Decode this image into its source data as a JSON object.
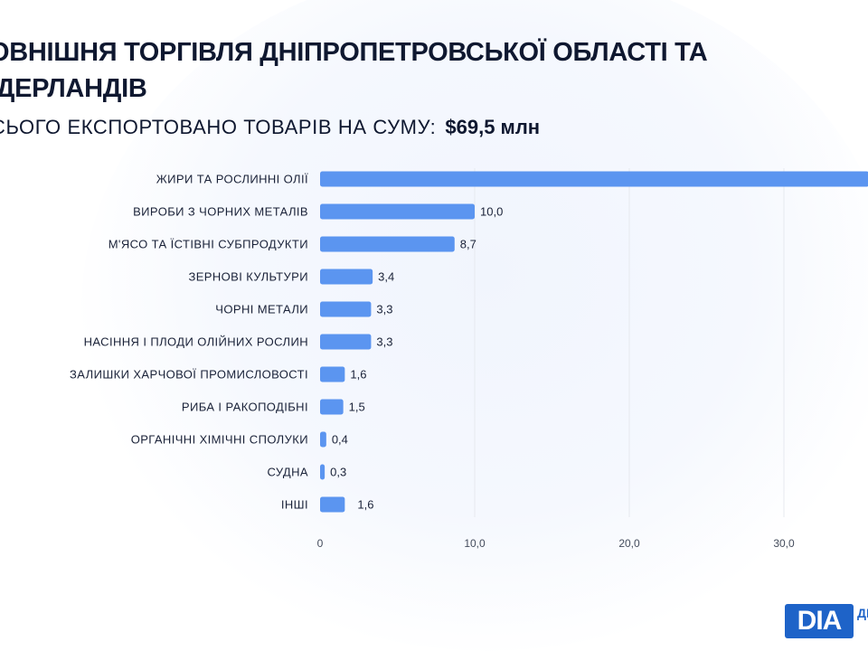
{
  "header": {
    "title": "ОВНІШНЯ ТОРГІВЛЯ ДНІПРОПЕТРОВСЬКОЇ ОБЛАСТІ ТА ІДЕРЛАНДІВ",
    "subtitle_prefix": "СЬОГО ЕКСПОРТОВАНО ТОВАРІВ НА СУМУ:",
    "subtitle_value": "$69,5 млн"
  },
  "logo": {
    "mark": "DІA",
    "text": "ДН ІНІ"
  },
  "chart_data": {
    "type": "bar",
    "orientation": "horizontal",
    "categories": [
      "ЖИРИ ТА РОСЛИННІ ОЛІЇ",
      "ВИРОБИ З ЧОРНИХ МЕТАЛІВ",
      "М'ЯСО ТА ЇСТІВНІ СУБПРОДУКТИ",
      "ЗЕРНОВІ КУЛЬТУРИ",
      "ЧОРНІ МЕТАЛИ",
      "НАСІННЯ І ПЛОДИ ОЛІЙНИХ РОСЛИН",
      "ЗАЛИШКИ ХАРЧОВОЇ ПРОМИСЛОВОСТІ",
      "РИБА І РАКОПОДІБНІ",
      "ОРГАНІЧНІ ХІМІЧНІ СПОЛУКИ",
      "СУДНА",
      "ІНШІ"
    ],
    "values": [
      35.5,
      10.0,
      8.7,
      3.4,
      3.3,
      3.3,
      1.6,
      1.5,
      0.4,
      0.3,
      1.6
    ],
    "value_labels": [
      "",
      "10,0",
      "8,7",
      "3,4",
      "3,3",
      "3,3",
      "1,6",
      "1,5",
      "0,4",
      "0,3",
      "1,6"
    ],
    "xlim": [
      0,
      35.5
    ],
    "xticks": [
      0,
      10,
      20,
      30
    ],
    "xtick_labels": [
      "0",
      "10,0",
      "20,0",
      "30,0"
    ],
    "grid": true,
    "bar_color": "#5b95f0"
  }
}
